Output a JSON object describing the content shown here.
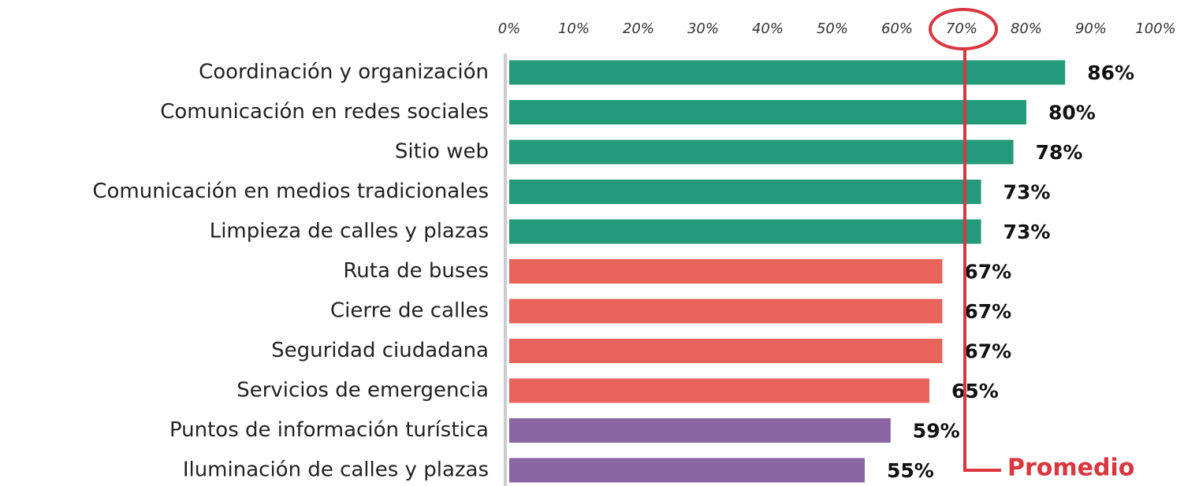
{
  "chart_data": {
    "type": "hbar",
    "categories": [
      "Coordinación y organización",
      "Comunicación en redes sociales",
      "Sitio web",
      "Comunicación en medios tradicionales",
      "Limpieza de calles y plazas",
      "Ruta de buses",
      "Cierre de calles",
      "Seguridad ciudadana",
      "Servicios de emergencia",
      "Puntos de información turística",
      "Iluminación de calles y plazas"
    ],
    "values": [
      86,
      80,
      78,
      73,
      73,
      67,
      67,
      67,
      65,
      59,
      55
    ],
    "value_labels": [
      "86%",
      "80%",
      "78%",
      "73%",
      "73%",
      "67%",
      "67%",
      "67%",
      "65%",
      "59%",
      "55%"
    ],
    "colors": [
      "#239b7b",
      "#239b7b",
      "#239b7b",
      "#239b7b",
      "#239b7b",
      "#e8645a",
      "#e8645a",
      "#e8645a",
      "#e8645a",
      "#8b64a3",
      "#8b64a3"
    ],
    "xlim": [
      0,
      100
    ],
    "xticks": [
      {
        "value": 0,
        "label": "0%"
      },
      {
        "value": 10,
        "label": "10%"
      },
      {
        "value": 20,
        "label": "20%"
      },
      {
        "value": 30,
        "label": "30%"
      },
      {
        "value": 40,
        "label": "40%"
      },
      {
        "value": 50,
        "label": "50%"
      },
      {
        "value": 60,
        "label": "60%"
      },
      {
        "value": 70,
        "label": "70%"
      },
      {
        "value": 80,
        "label": "80%"
      },
      {
        "value": 90,
        "label": "90%"
      },
      {
        "value": 100,
        "label": "100%"
      }
    ],
    "reference_line": {
      "value": 70,
      "label": "Promedio",
      "color": "#d9363e"
    }
  }
}
